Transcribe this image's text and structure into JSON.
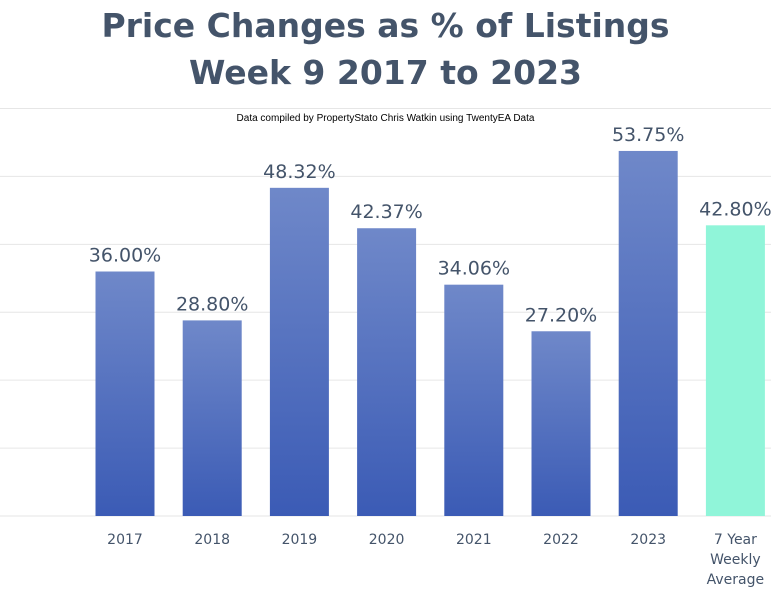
{
  "chart_data": {
    "type": "bar",
    "title": [
      "Price Changes as % of Listings",
      "Week 9 2017 to 2023"
    ],
    "subtitle": "Data compiled by PropertyStato Chris Watkin using TwentyEA Data",
    "categories": [
      [
        "2017"
      ],
      [
        "2018"
      ],
      [
        "2019"
      ],
      [
        "2020"
      ],
      [
        "2021"
      ],
      [
        "2022"
      ],
      [
        "2023"
      ],
      [
        "7 Year",
        "Weekly",
        "Average"
      ]
    ],
    "values": [
      36.0,
      28.8,
      48.32,
      42.37,
      34.06,
      27.2,
      53.75,
      42.8
    ],
    "labels": [
      "36.00%",
      "28.80%",
      "48.32%",
      "42.37%",
      "34.06%",
      "27.20%",
      "53.75%",
      "42.80%"
    ],
    "ylim": [
      0,
      60
    ],
    "grid": true,
    "colors": {
      "bar_top": "#6f88c9",
      "bar_bottom": "#3b5bb5",
      "average_bar": "#90f5d9",
      "text": "#44546a",
      "grid": "#e6e6e6"
    }
  }
}
